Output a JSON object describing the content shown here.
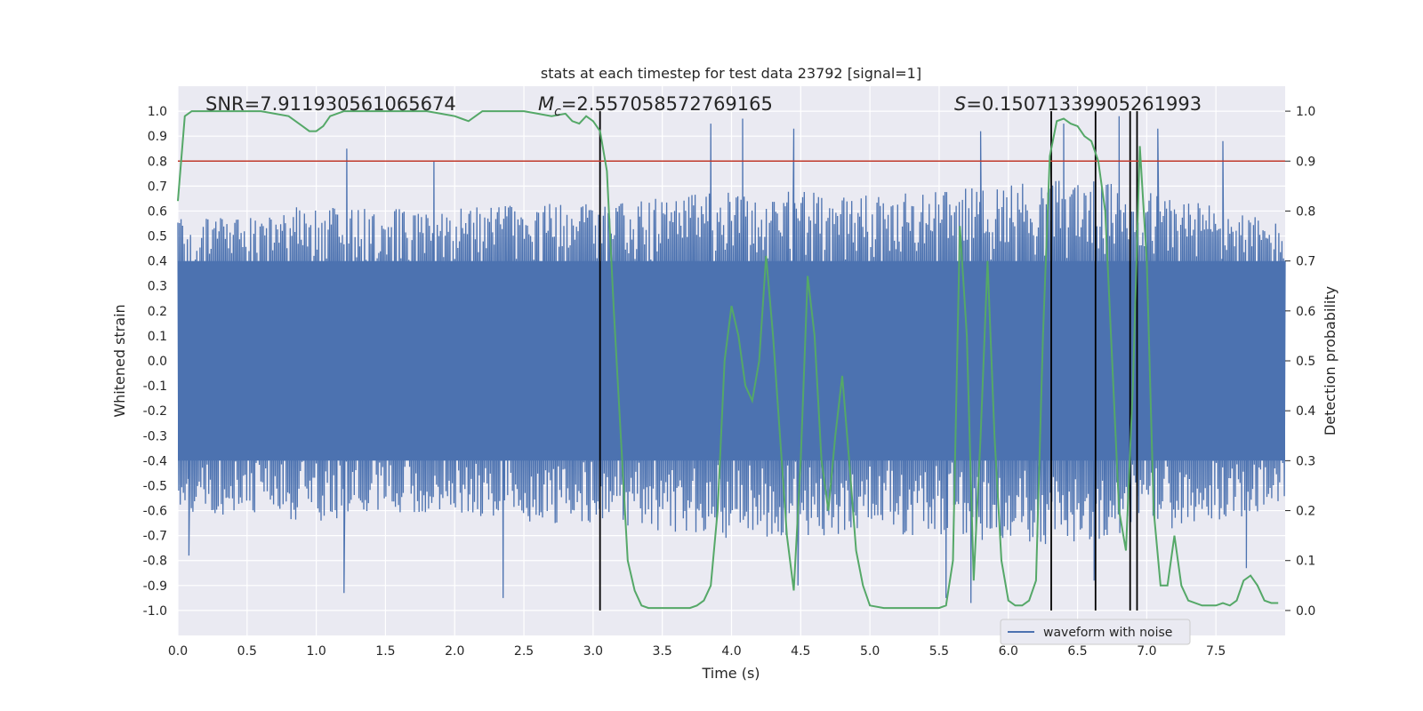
{
  "chart_data": {
    "type": "line",
    "title": "stats at each timestep for test data 23792 [signal=1]",
    "xlabel": "Time (s)",
    "ylabel_left": "Whitened strain",
    "ylabel_right": "Detection probability",
    "xlim": [
      0,
      8
    ],
    "ylim_left": [
      -1.1,
      1.1
    ],
    "ylim_right": [
      -0.05,
      1.05
    ],
    "grid": true,
    "x_ticks": [
      "0.0",
      "0.5",
      "1.0",
      "1.5",
      "2.0",
      "2.5",
      "3.0",
      "3.5",
      "4.0",
      "4.5",
      "5.0",
      "5.5",
      "6.0",
      "6.5",
      "7.0",
      "7.5"
    ],
    "y_left_ticks": [
      "1.0",
      "0.9",
      "0.8",
      "0.7",
      "0.6",
      "0.5",
      "0.4",
      "0.3",
      "0.2",
      "0.1",
      "0.0",
      "-0.1",
      "-0.2",
      "-0.3",
      "-0.4",
      "-0.5",
      "-0.6",
      "-0.7",
      "-0.8",
      "-0.9",
      "-1.0"
    ],
    "y_right_ticks": [
      "1.0",
      "0.9",
      "0.8",
      "0.7",
      "0.6",
      "0.5",
      "0.4",
      "0.3",
      "0.2",
      "0.1",
      "0.0"
    ],
    "annotations": {
      "snr": "SNR=7.911930561065674",
      "mc_symbol": "M",
      "mc_sub": "c",
      "mc_value": "=2.557058572769165",
      "s_symbol": "S",
      "s_value": "=0.15071339905261993"
    },
    "threshold": {
      "y_right": 0.9,
      "color": "#c0392b"
    },
    "vertical_markers_x": [
      3.05,
      6.31,
      6.63,
      6.88,
      6.93
    ],
    "legend": {
      "label": "waveform with noise",
      "position": "lower right"
    },
    "series": [
      {
        "name": "waveform with noise",
        "axis": "left",
        "color": "#4c72b0",
        "envelope": {
          "x": [
            0.0,
            0.5,
            1.0,
            1.5,
            2.0,
            2.5,
            3.0,
            3.5,
            4.0,
            4.5,
            5.0,
            5.5,
            6.0,
            6.5,
            7.0,
            7.5,
            8.0
          ],
          "upper": [
            0.55,
            0.55,
            0.6,
            0.58,
            0.58,
            0.6,
            0.6,
            0.62,
            0.65,
            0.65,
            0.63,
            0.65,
            0.68,
            0.7,
            0.65,
            0.6,
            0.52
          ],
          "lower": [
            -0.6,
            -0.58,
            -0.62,
            -0.6,
            -0.58,
            -0.62,
            -0.62,
            -0.65,
            -0.68,
            -0.68,
            -0.65,
            -0.68,
            -0.7,
            -0.7,
            -0.65,
            -0.62,
            -0.55
          ],
          "peaks": [
            [
              1.22,
              0.85
            ],
            [
              1.85,
              0.8
            ],
            [
              3.85,
              0.95
            ],
            [
              4.08,
              0.97
            ],
            [
              4.45,
              0.93
            ],
            [
              5.8,
              0.92
            ],
            [
              6.4,
              0.95
            ],
            [
              6.8,
              0.98
            ],
            [
              7.08,
              0.93
            ],
            [
              7.55,
              0.88
            ]
          ],
          "troughs": [
            [
              0.08,
              -0.78
            ],
            [
              1.2,
              -0.93
            ],
            [
              2.35,
              -0.95
            ],
            [
              4.48,
              -0.9
            ],
            [
              5.55,
              -0.95
            ],
            [
              5.73,
              -0.97
            ],
            [
              6.62,
              -0.88
            ],
            [
              7.72,
              -0.83
            ]
          ]
        }
      },
      {
        "name": "",
        "axis": "right",
        "color": "#55a868",
        "x": [
          0.0,
          0.05,
          0.1,
          0.15,
          0.2,
          0.3,
          0.4,
          0.5,
          0.6,
          0.7,
          0.8,
          0.85,
          0.9,
          0.95,
          1.0,
          1.05,
          1.1,
          1.2,
          1.3,
          1.4,
          1.5,
          1.6,
          1.7,
          1.8,
          1.9,
          2.0,
          2.05,
          2.1,
          2.15,
          2.2,
          2.3,
          2.4,
          2.5,
          2.6,
          2.7,
          2.8,
          2.85,
          2.9,
          2.95,
          3.0,
          3.05,
          3.1,
          3.15,
          3.2,
          3.25,
          3.3,
          3.35,
          3.4,
          3.5,
          3.6,
          3.7,
          3.75,
          3.8,
          3.85,
          3.9,
          3.95,
          4.0,
          4.05,
          4.1,
          4.15,
          4.2,
          4.25,
          4.3,
          4.35,
          4.4,
          4.45,
          4.5,
          4.55,
          4.6,
          4.65,
          4.7,
          4.75,
          4.8,
          4.85,
          4.9,
          4.95,
          5.0,
          5.1,
          5.2,
          5.3,
          5.4,
          5.5,
          5.55,
          5.6,
          5.65,
          5.7,
          5.75,
          5.8,
          5.85,
          5.9,
          5.95,
          6.0,
          6.05,
          6.1,
          6.15,
          6.2,
          6.25,
          6.3,
          6.35,
          6.4,
          6.45,
          6.5,
          6.55,
          6.6,
          6.65,
          6.7,
          6.75,
          6.8,
          6.85,
          6.9,
          6.95,
          7.0,
          7.05,
          7.1,
          7.15,
          7.2,
          7.25,
          7.3,
          7.4,
          7.5,
          7.55,
          7.6,
          7.65,
          7.7,
          7.75,
          7.8,
          7.85,
          7.9,
          7.95
        ],
        "y": [
          0.82,
          0.99,
          1.0,
          1.0,
          1.0,
          1.0,
          1.0,
          1.0,
          1.0,
          0.995,
          0.99,
          0.98,
          0.97,
          0.96,
          0.96,
          0.97,
          0.99,
          1.0,
          1.0,
          1.0,
          1.0,
          1.0,
          1.0,
          1.0,
          0.995,
          0.99,
          0.985,
          0.98,
          0.99,
          1.0,
          1.0,
          1.0,
          1.0,
          0.995,
          0.99,
          0.995,
          0.98,
          0.975,
          0.99,
          0.98,
          0.96,
          0.88,
          0.6,
          0.35,
          0.1,
          0.04,
          0.01,
          0.005,
          0.005,
          0.005,
          0.005,
          0.01,
          0.02,
          0.05,
          0.2,
          0.5,
          0.61,
          0.55,
          0.45,
          0.42,
          0.5,
          0.71,
          0.55,
          0.35,
          0.15,
          0.04,
          0.3,
          0.67,
          0.55,
          0.3,
          0.2,
          0.35,
          0.47,
          0.3,
          0.12,
          0.05,
          0.01,
          0.005,
          0.005,
          0.005,
          0.005,
          0.005,
          0.01,
          0.1,
          0.77,
          0.55,
          0.06,
          0.35,
          0.7,
          0.35,
          0.1,
          0.02,
          0.01,
          0.01,
          0.02,
          0.06,
          0.55,
          0.91,
          0.98,
          0.985,
          0.975,
          0.97,
          0.95,
          0.94,
          0.9,
          0.8,
          0.5,
          0.2,
          0.12,
          0.45,
          0.93,
          0.7,
          0.2,
          0.05,
          0.05,
          0.15,
          0.05,
          0.02,
          0.01,
          0.01,
          0.015,
          0.01,
          0.02,
          0.06,
          0.07,
          0.05,
          0.02,
          0.015,
          0.015
        ]
      }
    ]
  }
}
